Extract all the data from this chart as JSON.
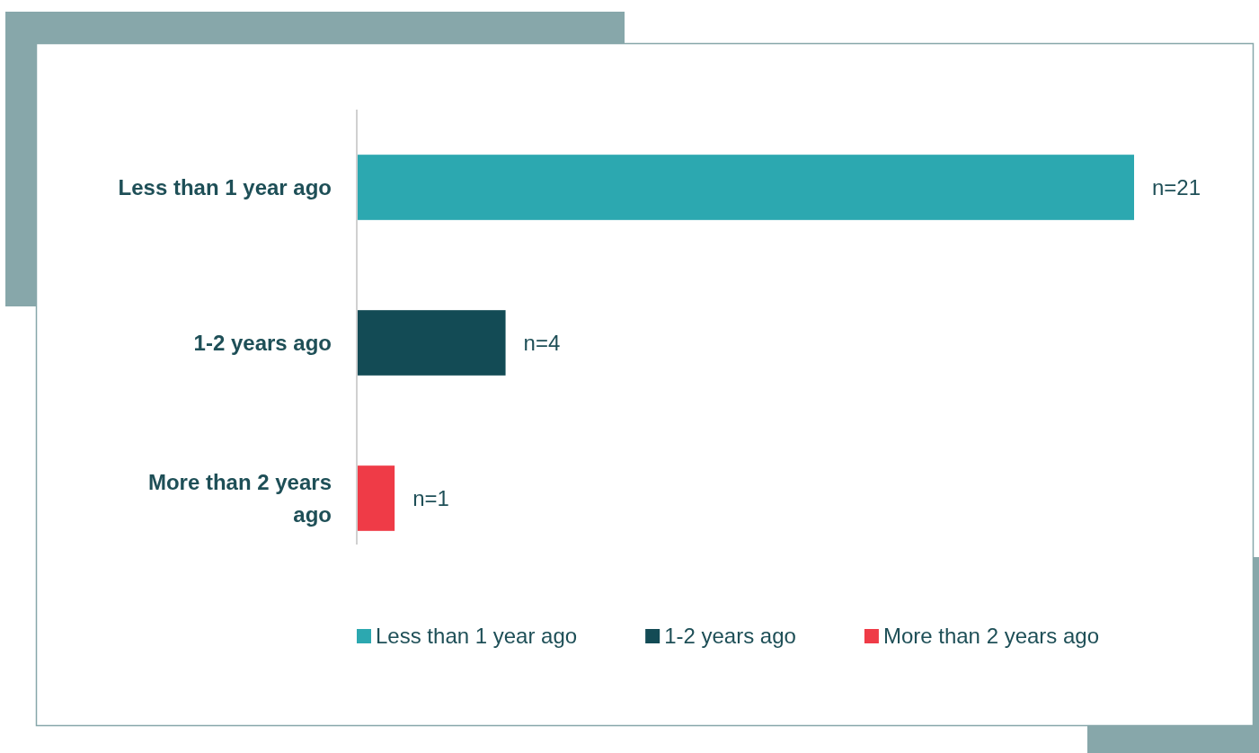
{
  "chart_data": {
    "type": "bar",
    "orientation": "horizontal",
    "stacked": true,
    "categories": [
      "Less than 1 year ago",
      "1-2 years ago",
      "More than 2 years ago"
    ],
    "series": [
      {
        "name": "Less than 1 year ago",
        "color": "#2ca8b0",
        "values": [
          21,
          null,
          null
        ],
        "value_labels": [
          "n=21",
          null,
          null
        ]
      },
      {
        "name": "1-2 years ago",
        "color": "#134b55",
        "values": [
          null,
          4,
          null
        ],
        "value_labels": [
          null,
          "n=4",
          null
        ]
      },
      {
        "name": "More than 2 years ago",
        "color": "#ef3b47",
        "values": [
          null,
          null,
          1
        ],
        "value_labels": [
          null,
          null,
          "n=1"
        ]
      }
    ],
    "legend": "bottom"
  }
}
